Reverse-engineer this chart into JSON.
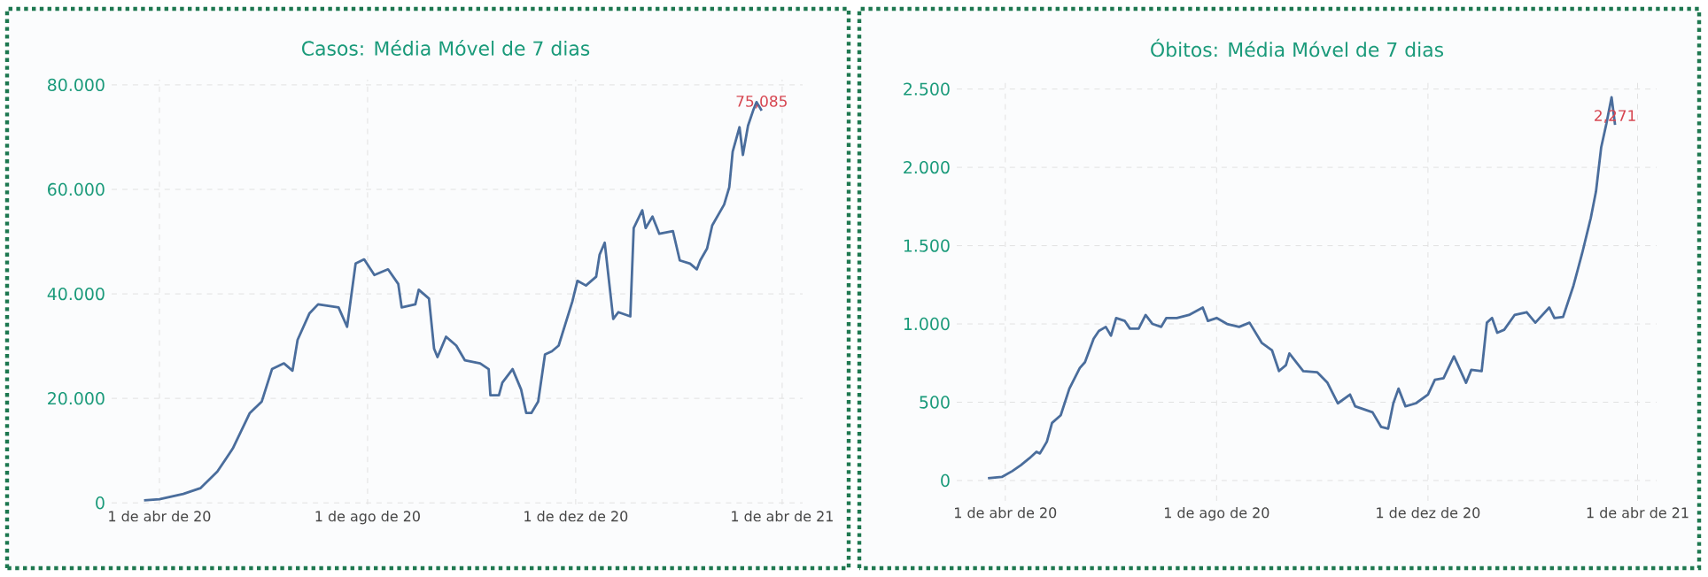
{
  "chart_data": [
    {
      "type": "line",
      "title": "Casos: Média Móvel de 7 dias",
      "color": "#4a6d9c",
      "grid": true,
      "x": [
        "2020-03-23",
        "2020-04-01",
        "2020-04-15",
        "2020-04-25",
        "2020-05-05",
        "2020-05-14",
        "2020-05-24",
        "2020-05-31",
        "2020-06-06",
        "2020-06-13",
        "2020-06-18",
        "2020-06-21",
        "2020-06-28",
        "2020-07-03",
        "2020-07-15",
        "2020-07-20",
        "2020-07-25",
        "2020-07-30",
        "2020-08-05",
        "2020-08-13",
        "2020-08-19",
        "2020-08-21",
        "2020-08-29",
        "2020-08-31",
        "2020-09-06",
        "2020-09-09",
        "2020-09-11",
        "2020-09-16",
        "2020-09-22",
        "2020-09-27",
        "2020-10-06",
        "2020-10-11",
        "2020-10-12",
        "2020-10-17",
        "2020-10-19",
        "2020-10-25",
        "2020-10-30",
        "2020-11-02",
        "2020-11-05",
        "2020-11-09",
        "2020-11-13",
        "2020-11-17",
        "2020-11-21",
        "2020-11-29",
        "2020-12-02",
        "2020-12-07",
        "2020-12-13",
        "2020-12-15",
        "2020-12-18",
        "2020-12-23",
        "2020-12-26",
        "2021-01-02",
        "2021-01-04",
        "2021-01-09",
        "2021-01-11",
        "2021-01-15",
        "2021-01-19",
        "2021-01-27",
        "2021-01-31",
        "2021-02-06",
        "2021-02-10",
        "2021-02-12",
        "2021-02-16",
        "2021-02-19",
        "2021-02-26",
        "2021-03-01",
        "2021-03-03",
        "2021-03-07",
        "2021-03-09",
        "2021-03-12",
        "2021-03-15",
        "2021-03-17",
        "2021-03-20"
      ],
      "values": [
        500,
        700,
        1700,
        2800,
        6000,
        10400,
        17200,
        19400,
        25600,
        26700,
        25300,
        31200,
        36300,
        38000,
        37400,
        33700,
        45800,
        46600,
        43600,
        44700,
        41900,
        37400,
        38000,
        40800,
        39100,
        29500,
        27900,
        31800,
        30100,
        27300,
        26700,
        25600,
        20600,
        20600,
        23000,
        25600,
        21700,
        17200,
        17200,
        19400,
        28400,
        29000,
        30100,
        38500,
        42500,
        41600,
        43300,
        47500,
        49800,
        35200,
        36500,
        35700,
        52600,
        56000,
        52600,
        54800,
        51500,
        52000,
        46400,
        45800,
        44700,
        46400,
        48700,
        53100,
        57100,
        60400,
        67200,
        71900,
        66600,
        72200,
        75100,
        76700,
        75085
      ],
      "xlim": [
        "2020-03-04",
        "2021-04-13"
      ],
      "ylim": [
        -300,
        81000
      ],
      "xticks": [
        {
          "value": "2020-04-01",
          "label": "1 de abr de 20"
        },
        {
          "value": "2020-08-01",
          "label": "1 de ago de 20"
        },
        {
          "value": "2020-12-01",
          "label": "1 de dez de 20"
        },
        {
          "value": "2021-04-01",
          "label": "1 de abr de 21"
        }
      ],
      "yticks": [
        0,
        {
          "value": 20000,
          "label": "20.000"
        },
        {
          "value": 40000,
          "label": "40.000"
        },
        {
          "value": 60000,
          "label": "60.000"
        },
        {
          "value": 80000,
          "label": "80.000"
        }
      ],
      "annotations": [
        {
          "text": "75,085",
          "x": "2021-03-20",
          "y": 75085
        }
      ]
    },
    {
      "type": "line",
      "title": "Óbitos: Média Móvel de 7 dias",
      "color": "#4a6d9c",
      "grid": true,
      "x": [
        "2020-03-22",
        "2020-03-30",
        "2020-04-05",
        "2020-04-10",
        "2020-04-15",
        "2020-04-19",
        "2020-04-21",
        "2020-04-25",
        "2020-04-28",
        "2020-05-03",
        "2020-05-08",
        "2020-05-14",
        "2020-05-17",
        "2020-05-22",
        "2020-05-25",
        "2020-05-29",
        "2020-06-01",
        "2020-06-04",
        "2020-06-09",
        "2020-06-12",
        "2020-06-17",
        "2020-06-21",
        "2020-06-25",
        "2020-06-30",
        "2020-07-03",
        "2020-07-09",
        "2020-07-16",
        "2020-07-24",
        "2020-07-27",
        "2020-08-01",
        "2020-08-07",
        "2020-08-14",
        "2020-08-20",
        "2020-08-27",
        "2020-09-02",
        "2020-09-06",
        "2020-09-10",
        "2020-09-12",
        "2020-09-20",
        "2020-09-28",
        "2020-10-04",
        "2020-10-10",
        "2020-10-17",
        "2020-10-20",
        "2020-10-30",
        "2020-11-04",
        "2020-11-08",
        "2020-11-11",
        "2020-11-14",
        "2020-11-18",
        "2020-11-24",
        "2020-12-01",
        "2020-12-05",
        "2020-12-10",
        "2020-12-16",
        "2020-12-23",
        "2020-12-26",
        "2021-01-01",
        "2021-01-04",
        "2021-01-07",
        "2021-01-10",
        "2021-01-14",
        "2021-01-20",
        "2021-01-27",
        "2021-02-01",
        "2021-02-09",
        "2021-02-12",
        "2021-02-17",
        "2021-02-23",
        "2021-02-28",
        "2021-03-05",
        "2021-03-08",
        "2021-03-11",
        "2021-03-14",
        "2021-03-17",
        "2021-03-19"
      ],
      "values": [
        15,
        23,
        60,
        98,
        143,
        184,
        173,
        248,
        368,
        417,
        587,
        718,
        756,
        906,
        955,
        981,
        925,
        1038,
        1019,
        970,
        970,
        1057,
        1000,
        981,
        1038,
        1038,
        1057,
        1105,
        1019,
        1038,
        1000,
        981,
        1008,
        880,
        831,
        699,
        737,
        812,
        699,
        692,
        624,
        493,
        549,
        474,
        436,
        342,
        331,
        493,
        587,
        474,
        493,
        549,
        643,
        654,
        793,
        624,
        707,
        699,
        1008,
        1038,
        944,
        963,
        1057,
        1075,
        1008,
        1105,
        1038,
        1045,
        1245,
        1451,
        1677,
        1846,
        2128,
        2279,
        2448,
        2271
      ],
      "xlim": [
        "2020-03-04",
        "2021-04-12"
      ],
      "ylim": [
        -130,
        2560
      ],
      "xticks": [
        {
          "value": "2020-04-01",
          "label": "1 de abr de 20"
        },
        {
          "value": "2020-08-01",
          "label": "1 de ago de 20"
        },
        {
          "value": "2020-12-01",
          "label": "1 de dez de 20"
        },
        {
          "value": "2021-04-01",
          "label": "1 de abr de 21"
        }
      ],
      "yticks": [
        0,
        500,
        {
          "value": 1000,
          "label": "1.000"
        },
        {
          "value": 1500,
          "label": "1.500"
        },
        {
          "value": 2000,
          "label": "2.000"
        },
        {
          "value": 2500,
          "label": "2.500"
        }
      ],
      "annotations": [
        {
          "text": "2,271",
          "x": "2021-03-19",
          "y": 2271
        }
      ]
    }
  ]
}
